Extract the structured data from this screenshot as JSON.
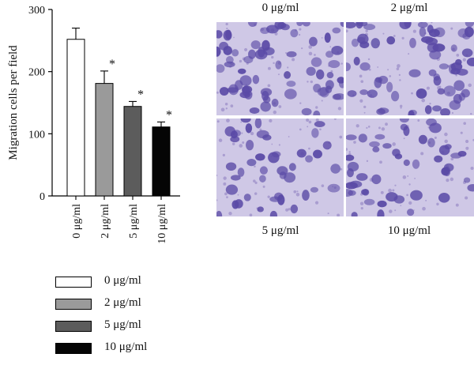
{
  "chart_data": {
    "type": "bar",
    "categories": [
      "0 μg/ml",
      "2 μg/ml",
      "5 μg/ml",
      "10 μg/ml"
    ],
    "values": [
      252,
      181,
      144,
      111
    ],
    "errors": [
      18,
      20,
      8,
      8
    ],
    "significance": [
      "",
      "*",
      "*",
      "*"
    ],
    "ylabel": "Migration cells per field",
    "xlabel": "",
    "ylim": [
      0,
      300
    ],
    "yticks": [
      0,
      100,
      200,
      300
    ],
    "colors": [
      "#ffffff",
      "#9a9a9a",
      "#5c5c5c",
      "#050505"
    ],
    "legend": {
      "position": "bottom-left",
      "entries": [
        "0 μg/ml",
        "2 μg/ml",
        "5 μg/ml",
        "10 μg/ml"
      ]
    },
    "grid": false
  },
  "micrographs": {
    "captions": [
      "0 μg/ml",
      "2 μg/ml",
      "5 μg/ml",
      "10 μg/ml"
    ],
    "cell_color": "#5a4aa6",
    "background_color": "#cfc8e6"
  }
}
